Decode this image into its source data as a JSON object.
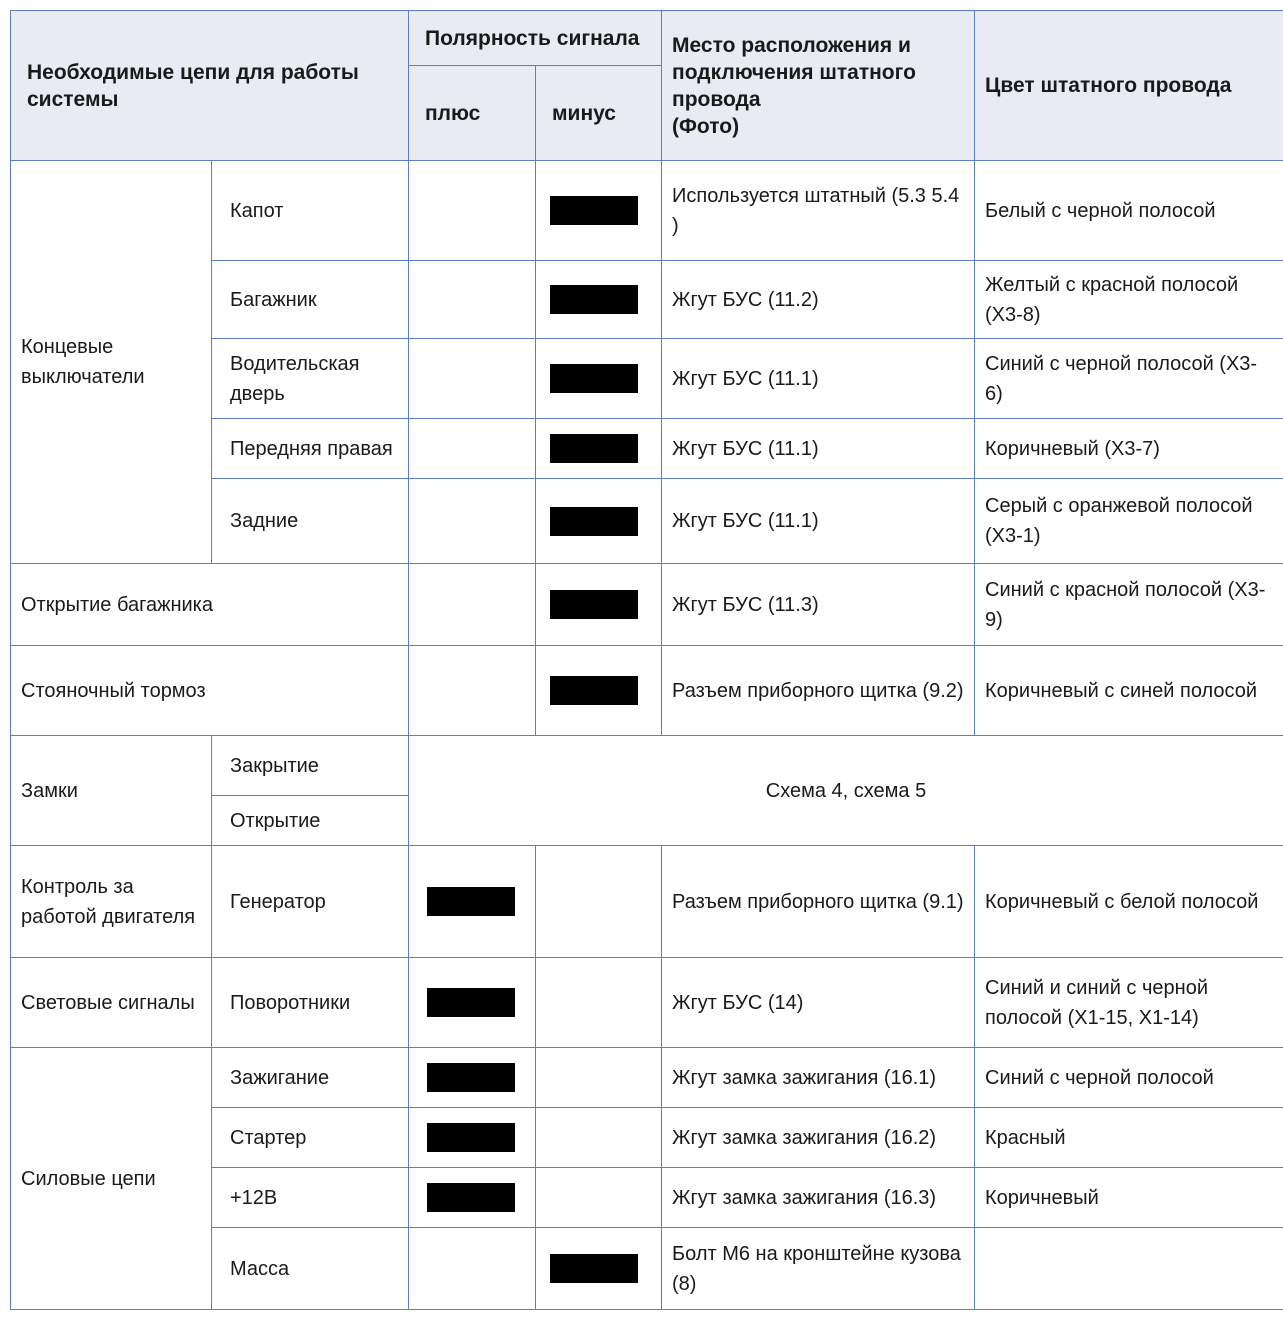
{
  "header": {
    "circuits": "Необходимые цепи для работы системы",
    "polarity": "Полярность сигнала",
    "plus": "плюс",
    "minus": "минус",
    "location": "Место расположения и подключения штатного провода\n(Фото)",
    "location_line1": "Место расположения и",
    "location_line2": "подключения штатного",
    "location_line3": "провода",
    "location_line4": "(Фото)",
    "color": "Цвет штатного провода"
  },
  "rows": {
    "limit_switches": "Концевые выключатели",
    "hood": {
      "name": "Капот",
      "location": "Используется штатный (5.3 5.4 )",
      "color": "Белый с черной полосой"
    },
    "trunk": {
      "name": "Багажник",
      "location": "Жгут БУС (11.2)",
      "color": "Желтый с красной полосой (X3-8)"
    },
    "driver_door": {
      "name": "Водительская дверь",
      "location": "Жгут БУС (11.1)",
      "color": "Синий с черной полосой (X3-6)"
    },
    "front_right": {
      "name": "Передняя правая",
      "location": "Жгут БУС (11.1)",
      "color": "Коричневый (X3-7)"
    },
    "rear": {
      "name": "Задние",
      "location": "Жгут БУС (11.1)",
      "color": "Серый с оранжевой полосой (X3-1)"
    },
    "trunk_open": {
      "name": "Открытие багажника",
      "location": "Жгут БУС (11.3)",
      "color": "Синий с красной полосой (X3-9)"
    },
    "parking_brake": {
      "name": "Стояночный тормоз",
      "location": "Разъем приборного щитка (9.2)",
      "color": "Коричневый с синей полосой"
    },
    "locks": "Замки",
    "lock_close": "Закрытие",
    "lock_open": "Открытие",
    "locks_note": "Схема 4, схема 5",
    "engine_control": "Контроль за работой двигателя",
    "generator": {
      "name": "Генератор",
      "location": "Разъем приборного щитка (9.1)",
      "color": "Коричневый с белой полосой"
    },
    "light_signals": "Световые сигналы",
    "turn_signals": {
      "name": "Поворотники",
      "location": "Жгут БУС (14)",
      "color": "Синий и синий с черной полосой (X1-15, X1-14)"
    },
    "power_circuits": "Силовые цепи",
    "ignition": {
      "name": "Зажигание",
      "location": "Жгут замка зажигания (16.1)",
      "color": "Синий с черной полосой"
    },
    "starter": {
      "name": "Стартер",
      "location": "Жгут замка зажигания (16.2)",
      "color": "Красный"
    },
    "plus12": {
      "name": "+12В",
      "location": "Жгут замка зажигания (16.3)",
      "color": "Коричневый"
    },
    "ground": {
      "name": "Масса",
      "location": "Болт М6 на кронштейне кузова (8)",
      "color": ""
    }
  }
}
